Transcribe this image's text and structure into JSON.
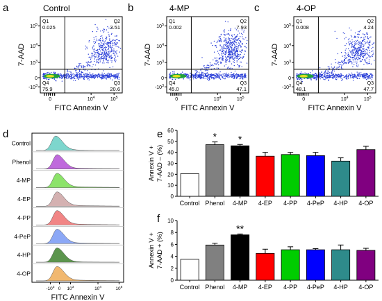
{
  "colors": {
    "scatter_dots": "#2a3fd8",
    "scatter_hot": "#1fa03a",
    "scatter_core": "#e0e020",
    "quad_line": "#000000",
    "bars": [
      "#ffffff",
      "#808080",
      "#000000",
      "#ff0000",
      "#00cc00",
      "#0000ff",
      "#2e8b8b",
      "#800080"
    ],
    "hist_fills": [
      "#6fd2c8",
      "#b85ad8",
      "#7fe05a",
      "#cfa8a8",
      "#f07878",
      "#7f9ff5",
      "#4a8a3a",
      "#f0b060"
    ]
  },
  "panel_labels": {
    "a": "a",
    "b": "b",
    "c": "c",
    "d": "d",
    "e": "e",
    "f": "f"
  },
  "chart_data": [
    {
      "type": "scatter",
      "panel": "a",
      "title": "Control",
      "xlabel": "FITC Annexin V",
      "ylabel": "7-AAD",
      "x_ticks": [
        "0",
        "10^4",
        "10^5"
      ],
      "y_ticks": [
        "-10^3",
        "0",
        "10^3",
        "10^4",
        "10^5"
      ],
      "quadrants": [
        {
          "name": "Q1",
          "value": "0.025"
        },
        {
          "name": "Q2",
          "value": "3.51"
        },
        {
          "name": "Q3",
          "value": "20.6"
        },
        {
          "name": "Q4",
          "value": "75.9"
        }
      ]
    },
    {
      "type": "scatter",
      "panel": "b",
      "title": "4-MP",
      "xlabel": "FITC Annexin V",
      "ylabel": "7-AAD",
      "x_ticks": [
        "0",
        "10^4",
        "10^5"
      ],
      "y_ticks": [
        "-10^3",
        "0",
        "10^3",
        "10^4",
        "10^5"
      ],
      "quadrants": [
        {
          "name": "Q1",
          "value": "0.002"
        },
        {
          "name": "Q2",
          "value": "7.93"
        },
        {
          "name": "Q3",
          "value": "47.1"
        },
        {
          "name": "Q4",
          "value": "45.0"
        }
      ]
    },
    {
      "type": "scatter",
      "panel": "c",
      "title": "4-OP",
      "xlabel": "FITC Annexin V",
      "ylabel": "7-AAD",
      "x_ticks": [
        "0",
        "10^4",
        "10^5"
      ],
      "y_ticks": [
        "-10^3",
        "0",
        "10^3",
        "10^4",
        "10^5"
      ],
      "quadrants": [
        {
          "name": "Q1",
          "value": "0.008"
        },
        {
          "name": "Q2",
          "value": "4.24"
        },
        {
          "name": "Q3",
          "value": "47.7"
        },
        {
          "name": "Q4",
          "value": "48.1"
        }
      ]
    },
    {
      "type": "area",
      "panel": "d",
      "xlabel": "FITC Annexin V",
      "x_ticks": [
        "-10^3",
        "0",
        "10^3",
        "10^4",
        "10^5"
      ],
      "categories": [
        "Control",
        "Phenol",
        "4-MP",
        "4-EP",
        "4-PP",
        "4-PeP",
        "4-HP",
        "4-OP"
      ]
    },
    {
      "type": "bar",
      "panel": "e",
      "categories": [
        "Control",
        "Phenol",
        "4-MP",
        "4-EP",
        "4-PP",
        "4-PeP",
        "4-HP",
        "4-OP"
      ],
      "values": [
        20.6,
        47,
        46,
        36.5,
        38,
        37,
        32,
        42.5
      ],
      "errors": [
        0,
        2.5,
        1.2,
        3.5,
        2,
        3,
        3,
        3
      ],
      "annotations": [
        "",
        "*",
        "*",
        "",
        "",
        "",
        "",
        ""
      ],
      "ylabel_line1": "Annexin V +",
      "ylabel_line2": "7-AAD – (%)",
      "ylim": [
        0,
        60
      ],
      "y_ticks": [
        0,
        10,
        20,
        30,
        40,
        50,
        60
      ]
    },
    {
      "type": "bar",
      "panel": "f",
      "categories": [
        "Control",
        "Phenol",
        "4-MP",
        "4-EP",
        "4-PP",
        "4-PeP",
        "4-HP",
        "4-OP"
      ],
      "values": [
        3.5,
        5.9,
        7.6,
        4.5,
        5.1,
        5.1,
        5.1,
        5.0
      ],
      "errors": [
        0,
        0.3,
        0.15,
        0.7,
        0.5,
        0.2,
        0.8,
        0.35
      ],
      "annotations": [
        "",
        "",
        "**",
        "",
        "",
        "",
        "",
        ""
      ],
      "ylabel_line1": "Annexin V +",
      "ylabel_line2": "7-AAD + (%)",
      "ylim": [
        0,
        10
      ],
      "y_ticks": [
        0,
        2,
        4,
        6,
        8,
        10
      ]
    }
  ]
}
